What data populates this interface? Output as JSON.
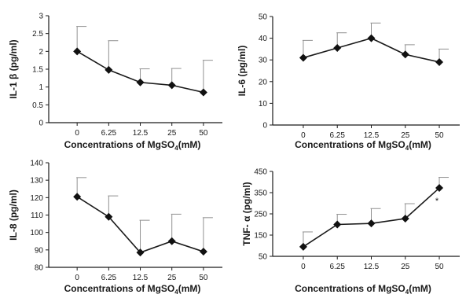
{
  "chart_data": [
    {
      "type": "line",
      "title": "",
      "xlabel": "Concentrations of MgSO4(mM)",
      "xlabel_parts": {
        "main": "Concentrations of MgSO",
        "sub": "4",
        "tail": "(mM)"
      },
      "ylabel": "IL-1 β (pg/ml)",
      "categories": [
        "0",
        "6.25",
        "12.5",
        "25",
        "50"
      ],
      "values": [
        2.0,
        1.48,
        1.13,
        1.05,
        0.85
      ],
      "errors": [
        0.7,
        0.82,
        0.38,
        0.47,
        0.9
      ],
      "ylim": [
        0,
        3
      ],
      "yticks": [
        "0",
        "0.5",
        "1",
        "1.5",
        "2",
        "2.5",
        "3"
      ],
      "grid": false,
      "annotations": []
    },
    {
      "type": "line",
      "title": "",
      "xlabel": "Concentrations of MgSO4(mM)",
      "xlabel_parts": {
        "main": "Concentrations of MgSO",
        "sub": "4",
        "tail": "(mM)"
      },
      "ylabel": "IL-6 (pg/ml)",
      "categories": [
        "0",
        "6.25",
        "12.5",
        "25",
        "50"
      ],
      "values": [
        31,
        35.5,
        40,
        32.5,
        29
      ],
      "errors": [
        8,
        7,
        7,
        4.5,
        6
      ],
      "ylim": [
        0,
        50
      ],
      "yticks": [
        "0",
        "10",
        "20",
        "30",
        "40",
        "50"
      ],
      "grid": false,
      "annotations": []
    },
    {
      "type": "line",
      "title": "",
      "xlabel": "Concentrations of MgSO4(mM)",
      "xlabel_parts": {
        "main": "Concentrations of MgSO",
        "sub": "4",
        "tail": "(mM)"
      },
      "ylabel": "IL-8 (pg/ml)",
      "categories": [
        "0",
        "6.25",
        "12.5",
        "25",
        "50"
      ],
      "values": [
        120.5,
        109,
        88.5,
        95,
        89
      ],
      "errors": [
        11,
        12,
        18.5,
        15.5,
        19.5
      ],
      "ylim": [
        80,
        140
      ],
      "yticks": [
        "80",
        "90",
        "100",
        "110",
        "120",
        "130",
        "140"
      ],
      "grid": false,
      "annotations": []
    },
    {
      "type": "line",
      "title": "",
      "xlabel": "Concentrations of MgSO4(mM)",
      "xlabel_parts": {
        "main": "Concentrations of MgSO",
        "sub": "4",
        "tail": "(mM)"
      },
      "ylabel": "TNF- α (pg/ml)",
      "categories": [
        "0",
        "6.25",
        "12.5",
        "25",
        "50"
      ],
      "values": [
        95,
        200,
        205,
        228,
        372
      ],
      "errors": [
        70,
        48,
        70,
        70,
        50
      ],
      "ylim": [
        50,
        450
      ],
      "yticks": [
        "50",
        "150",
        "250",
        "350",
        "450"
      ],
      "grid": false,
      "annotations": [
        {
          "text": "*",
          "category_index": 4
        }
      ]
    }
  ],
  "colors": {
    "line": "#1a1a1a",
    "marker": "#111111",
    "axis": "#1a1a1a",
    "error_bar": "#909090",
    "background": "#ffffff"
  }
}
